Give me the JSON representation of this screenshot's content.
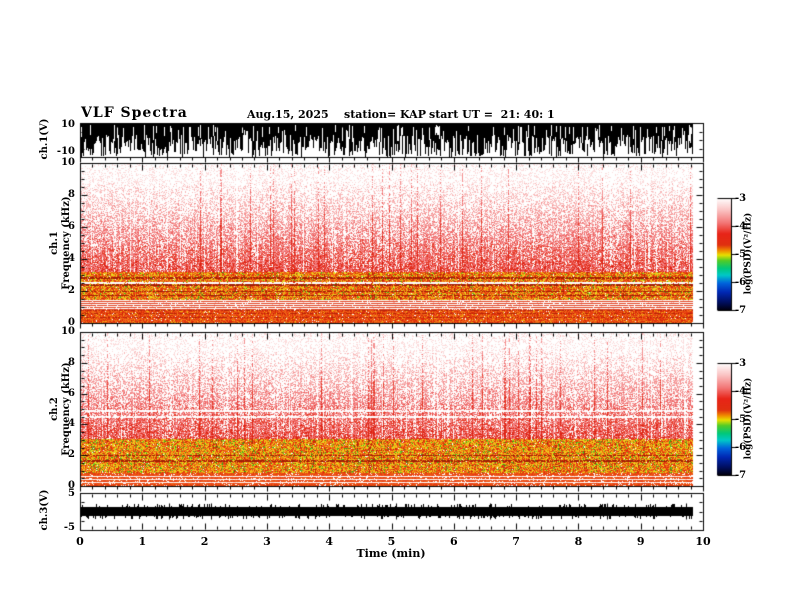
{
  "header": {
    "title": "VLF Spectra",
    "date": "Aug.15, 2025",
    "station": "station= KAP",
    "start_ut": "start UT =  21: 40: 1"
  },
  "panels": {
    "ch1_wave": {
      "label": "ch.1(V)",
      "ytick_top": "10",
      "ytick_bottom": "-10"
    },
    "ch1_spec": {
      "channel": "ch.1",
      "ylabel": "Frequency (kHz)",
      "yticks": [
        "10",
        "8",
        "6",
        "4",
        "2",
        "0"
      ]
    },
    "ch2_spec": {
      "channel": "ch.2",
      "ylabel": "Frequency (kHz)",
      "yticks": [
        "10",
        "8",
        "6",
        "4",
        "2",
        "0"
      ]
    },
    "ch3_wave": {
      "label": "ch.3(V)",
      "ytick_top": "5",
      "ytick_bottom": "-5"
    }
  },
  "xaxis": {
    "label": "Time (min)",
    "ticks": [
      "0",
      "1",
      "2",
      "3",
      "4",
      "5",
      "6",
      "7",
      "8",
      "9",
      "10"
    ],
    "range_min": [
      0,
      10
    ],
    "minor_step_min": 0.2
  },
  "colorbars": [
    {
      "label": "log(PSD)(V²/Hz)",
      "ticks": [
        "-3",
        "-4",
        "-5",
        "-6",
        "-7"
      ],
      "range": [
        -3,
        -7
      ]
    },
    {
      "label": "log(PSD)(V²/Hz)",
      "ticks": [
        "-3",
        "-4",
        "-5",
        "-6",
        "-7"
      ],
      "range": [
        -3,
        -7
      ]
    }
  ],
  "colorscale": {
    "stops": [
      {
        "pos": 0.0,
        "color": "#ffffff"
      },
      {
        "pos": 0.1,
        "color": "#fbc8c8"
      },
      {
        "pos": 0.22,
        "color": "#f37878"
      },
      {
        "pos": 0.32,
        "color": "#e82418"
      },
      {
        "pos": 0.42,
        "color": "#e03010"
      },
      {
        "pos": 0.47,
        "color": "#f08c00"
      },
      {
        "pos": 0.51,
        "color": "#e8e000"
      },
      {
        "pos": 0.56,
        "color": "#50cc28"
      },
      {
        "pos": 0.63,
        "color": "#00c87c"
      },
      {
        "pos": 0.69,
        "color": "#00c8c8"
      },
      {
        "pos": 0.76,
        "color": "#0064dc"
      },
      {
        "pos": 0.84,
        "color": "#0028b4"
      },
      {
        "pos": 0.93,
        "color": "#000f60"
      },
      {
        "pos": 1.0,
        "color": "#000010"
      }
    ]
  },
  "palettes": {
    "speckle": [
      "#fcdcdc",
      "#f8b8b8",
      "#f49090",
      "#ee6464",
      "#e63c28",
      "#dc2012"
    ],
    "red": [
      "#e63c10",
      "#ee5814",
      "#da2a08",
      "#f07018"
    ],
    "deep_red": [
      "#b42408",
      "#a01c04"
    ],
    "yellow": [
      "#f2b414",
      "#eccc20",
      "#f0a00c",
      "#e8e020"
    ],
    "green": [
      "#54bc20",
      "#7cc828",
      "#30a818"
    ],
    "line_red": "#e24828",
    "ink": "#000000",
    "background": "#ffffff"
  },
  "chart_data": [
    {
      "id": "ch1_waveform",
      "type": "line",
      "ylabel": "ch.1(V)",
      "ylim": [
        -10,
        10
      ],
      "xlim": [
        0,
        10
      ],
      "xlabel": "Time (min)",
      "data_end_min": 9.84,
      "description": "Broadband VLF time series clipped at +/-10 V; renders as a dense black band with ragged white gaps."
    },
    {
      "id": "ch1_spectrogram",
      "type": "heatmap",
      "ylabel": "ch.1 Frequency (kHz)",
      "ylim": [
        0,
        10
      ],
      "xlim": [
        0,
        10
      ],
      "zlabel": "log(PSD)(V²/Hz)",
      "zlim": [
        -7,
        -3
      ],
      "data_end_min": 9.84,
      "bands": [
        {
          "f_range": [
            3.2,
            10
          ],
          "style": "speckle",
          "psd_approx": [
            -6.5,
            -4.5
          ]
        },
        {
          "f_range": [
            1.45,
            3.2
          ],
          "style": "dense_yellow",
          "yellow": 0.34,
          "green": 0.05,
          "psd_approx": [
            -4.5,
            -4.0
          ]
        },
        {
          "f_range": [
            0.85,
            1.45
          ],
          "style": "hlines_white",
          "psd_approx": [
            -5.0,
            -4.0
          ]
        },
        {
          "f_range": [
            0,
            0.85
          ],
          "style": "dense_red",
          "psd_approx": [
            -4.0,
            -3.5
          ]
        }
      ],
      "white_lines": [
        2.55
      ],
      "dark_lines": [
        2.85,
        2.4,
        2.0,
        1.75
      ]
    },
    {
      "id": "ch2_spectrogram",
      "type": "heatmap",
      "ylabel": "ch.2 Frequency (kHz)",
      "ylim": [
        0,
        10
      ],
      "xlim": [
        0,
        10
      ],
      "zlabel": "log(PSD)(V²/Hz)",
      "zlim": [
        -7,
        -3
      ],
      "data_end_min": 9.84,
      "bands": [
        {
          "f_range": [
            3.1,
            10
          ],
          "style": "speckle",
          "psd_approx": [
            -6.5,
            -4.5
          ]
        },
        {
          "f_range": [
            0.85,
            3.1
          ],
          "style": "dense_yellow",
          "yellow": 0.42,
          "green": 0.1,
          "psd_approx": [
            -4.5,
            -3.5
          ]
        },
        {
          "f_range": [
            0,
            0.85
          ],
          "style": "stripes",
          "psd_approx": [
            -4.5,
            -3.5
          ]
        }
      ],
      "white_lines": [
        4.5,
        4.9
      ],
      "dark_lines": [
        2.0,
        1.65
      ]
    },
    {
      "id": "ch3_waveform",
      "type": "line",
      "ylabel": "ch.3(V)",
      "ylim": [
        -5,
        5
      ],
      "xlim": [
        0,
        10
      ],
      "amplitude_approx": 1.2,
      "data_end_min": 9.84,
      "description": "Near-constant signal of ~+/-1 V; renders as a thick black horizontal band at 0 V."
    }
  ]
}
